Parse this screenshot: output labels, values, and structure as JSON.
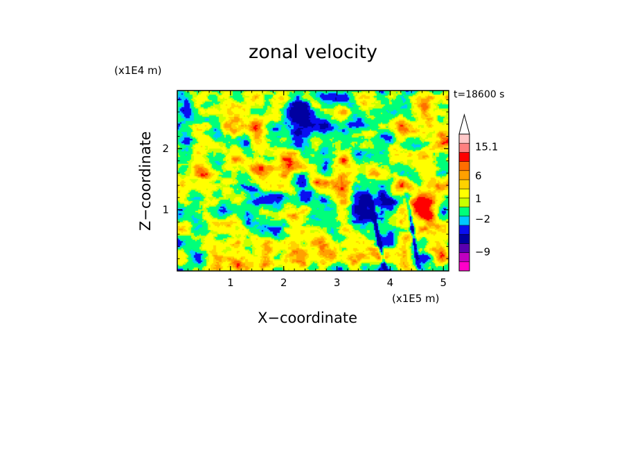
{
  "chart_data": {
    "type": "heatmap",
    "title": "zonal velocity",
    "xlabel": "X−coordinate",
    "ylabel": "Z−coordinate",
    "x_scale_label": "(x1E5 m)",
    "y_scale_label": "(x1E4 m)",
    "time_label": "t=18600 s",
    "xlim": [
      0,
      5.1
    ],
    "ylim": [
      0,
      2.95
    ],
    "x_ticks": [
      "1",
      "2",
      "3",
      "4",
      "5"
    ],
    "y_ticks": [
      "1",
      "2"
    ],
    "colorbar": {
      "tick_labels": [
        "15.1",
        "6",
        "1",
        "−2",
        "−9"
      ],
      "colors": [
        "#ff00c8",
        "#c000c0",
        "#5a00b0",
        "#0000a0",
        "#0a0ff0",
        "#00c8ff",
        "#00ff7a",
        "#c8ff00",
        "#ffff00",
        "#ffd200",
        "#ffa000",
        "#ff6e00",
        "#ff0000",
        "#ff8080",
        "#ffc8c8"
      ]
    },
    "features": [
      {
        "name": "strong negative jet",
        "x": 3.5,
        "z": 1.0
      },
      {
        "name": "positive jet",
        "x": 4.6,
        "z": 1.15
      },
      {
        "name": "narrow negative band",
        "x": 3.75,
        "z": 0.5
      },
      {
        "name": "narrow negative band",
        "x": 4.4,
        "z": 0.6
      }
    ]
  }
}
